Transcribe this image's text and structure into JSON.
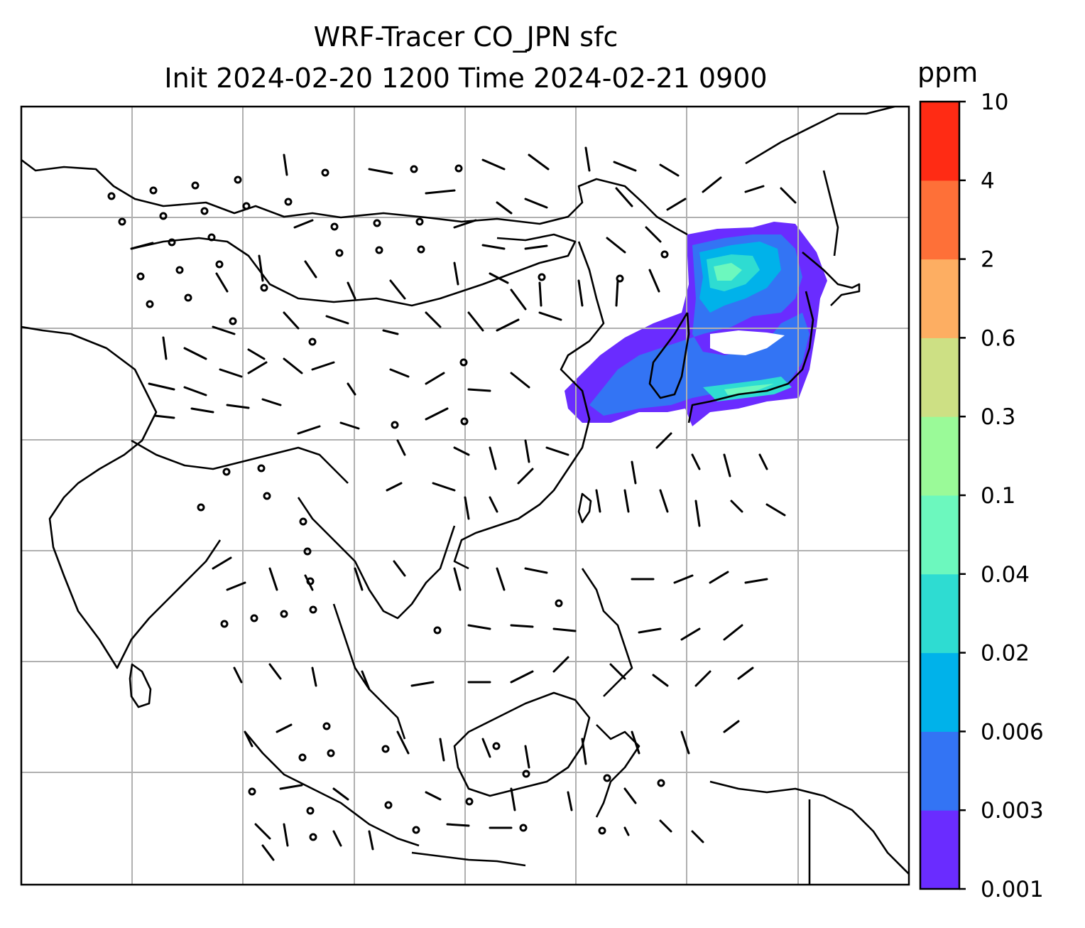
{
  "title": {
    "line1": "WRF-Tracer CO_JPN sfc",
    "line2": "Init 2024-02-20 1200 Time 2024-02-21 0900"
  },
  "colorbar": {
    "unit": "ppm",
    "levels": [
      "0.001",
      "0.003",
      "0.006",
      "0.02",
      "0.04",
      "0.1",
      "0.3",
      "0.6",
      "2",
      "4",
      "10"
    ],
    "colors": [
      "#6a2cff",
      "#3374f4",
      "#00b2ea",
      "#2edcd2",
      "#6cf8be",
      "#9afa98",
      "#cde084",
      "#fdae62",
      "#fe7038",
      "#ff2b14"
    ]
  },
  "map": {
    "gridlines": true,
    "gridline_color": "#b0b0b0",
    "coastline_color": "#000000",
    "tracer_plume_region": "Japan / Korea / East China Sea"
  }
}
